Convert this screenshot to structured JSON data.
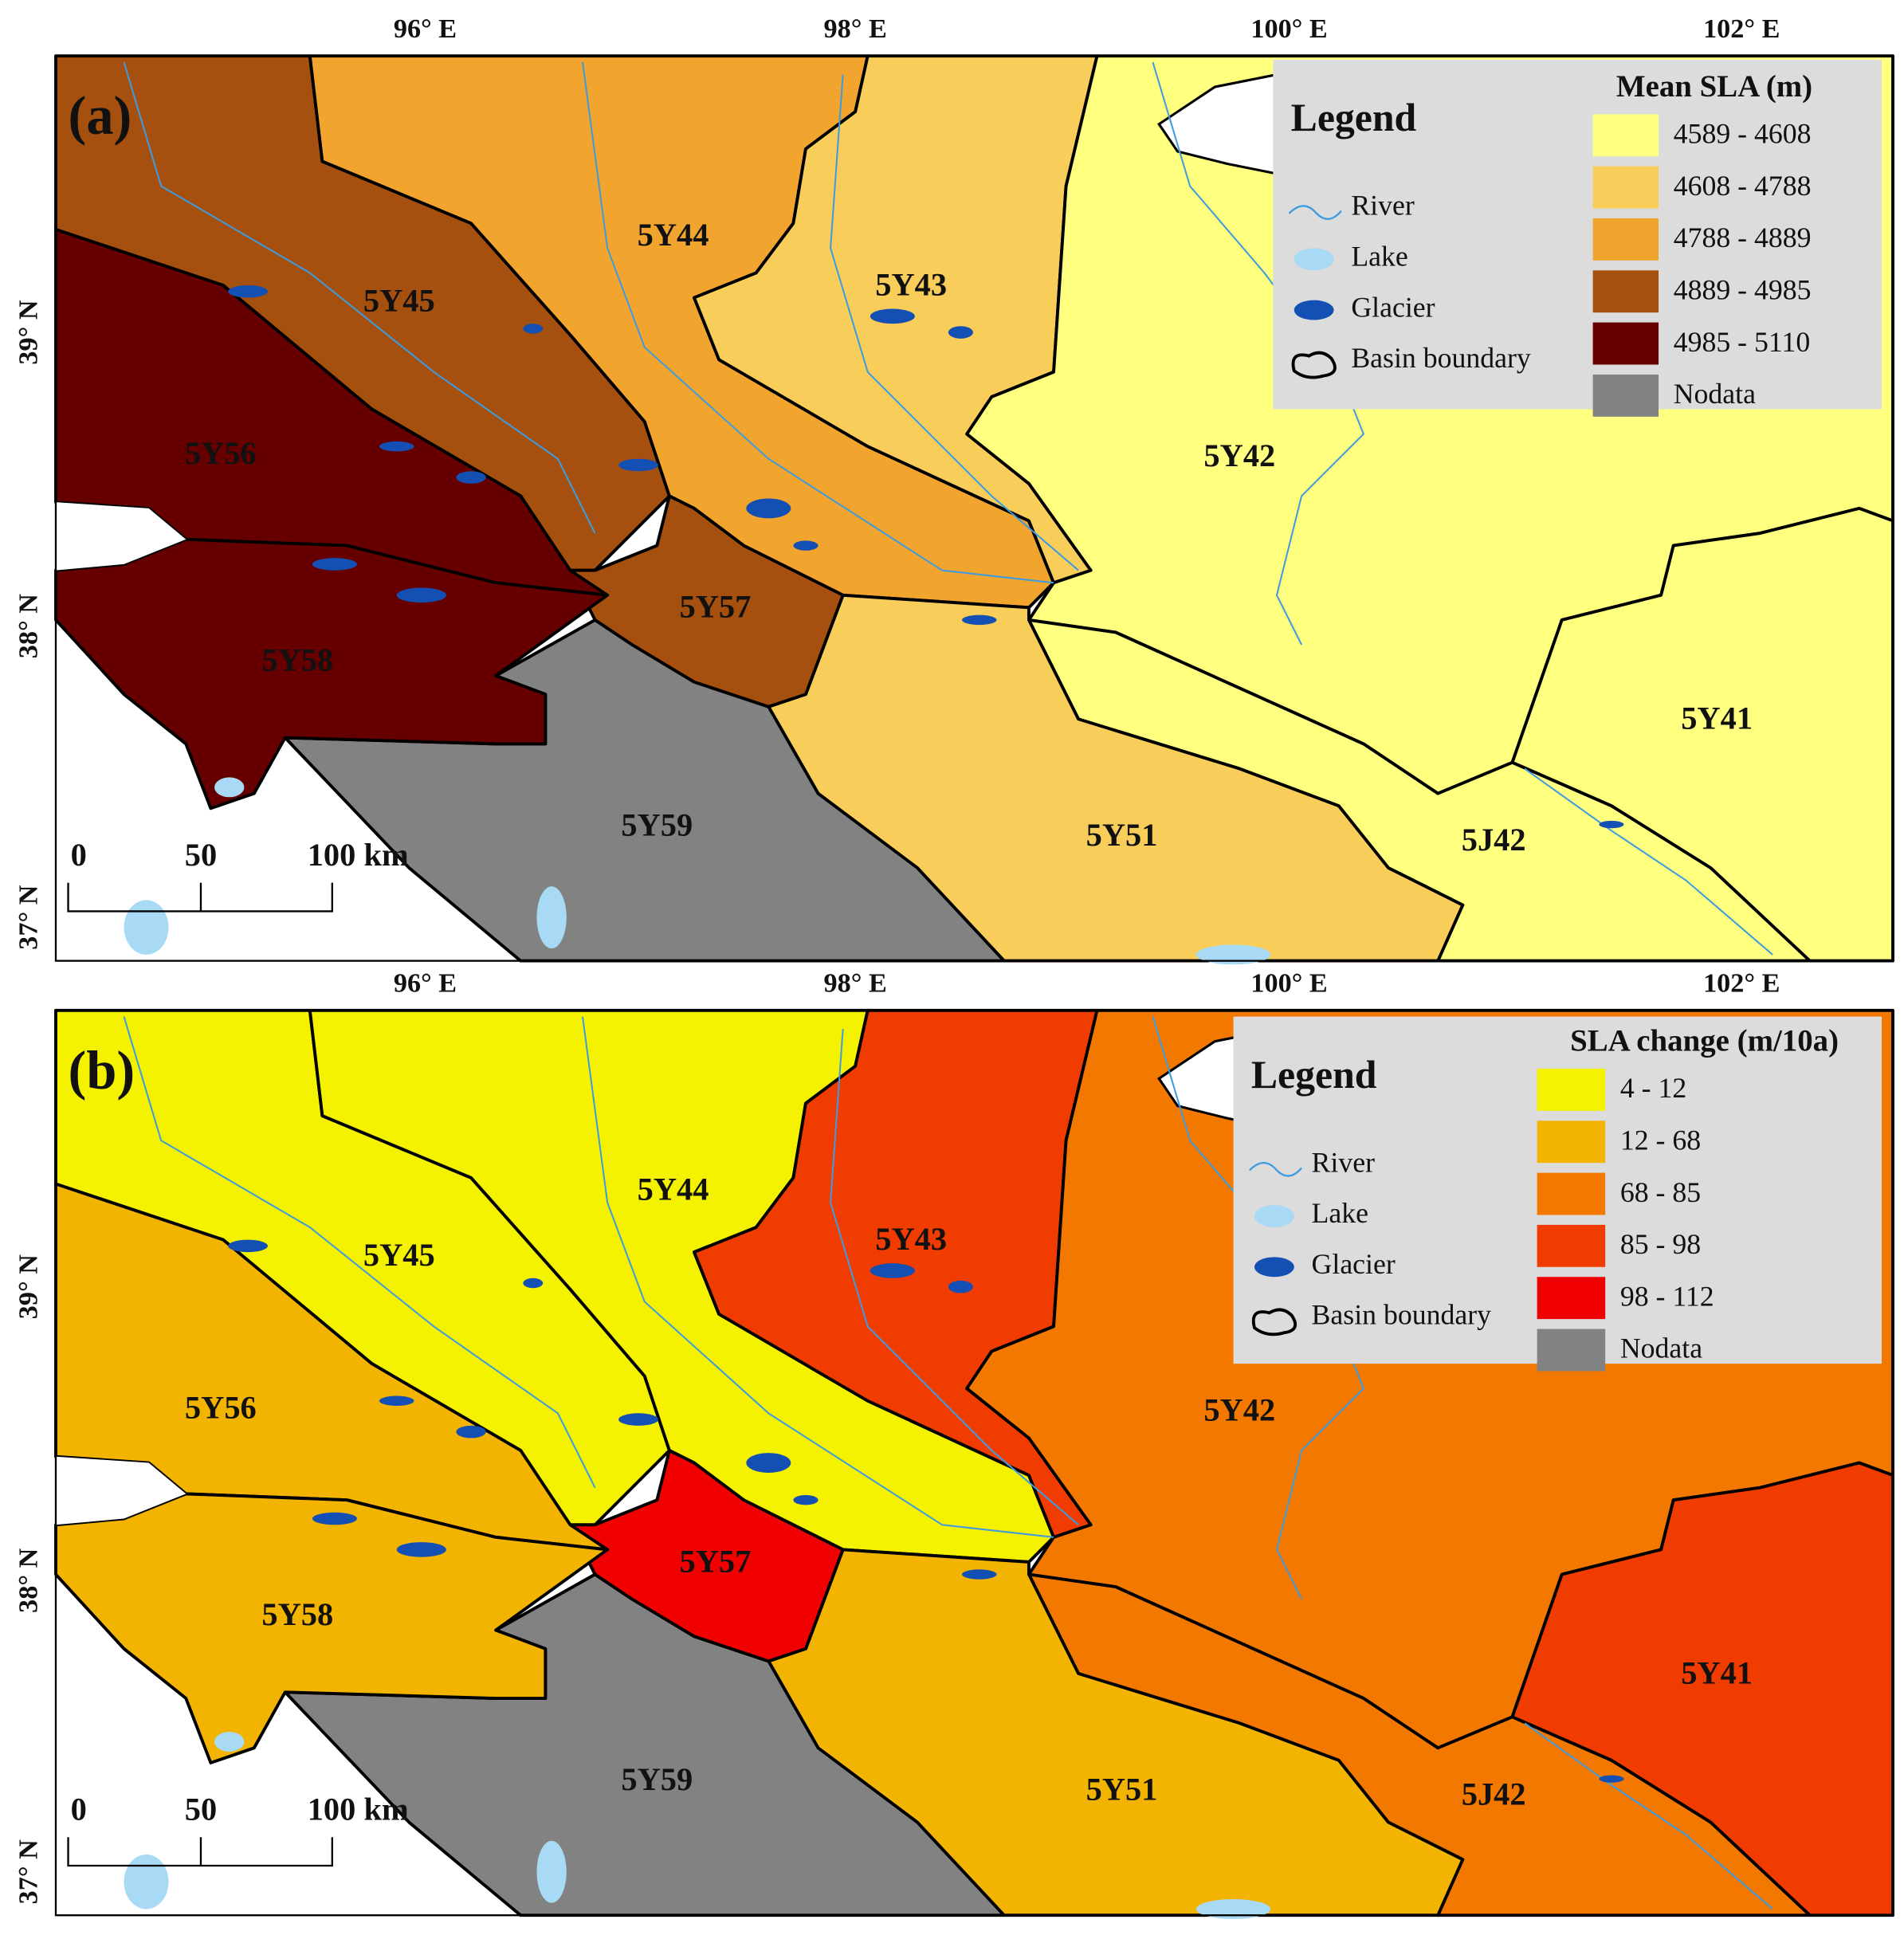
{
  "panels": [
    {
      "label": "(a)",
      "legend": {
        "title": "Legend",
        "items": [
          "River",
          "Lake",
          "Glacier",
          "Basin boundary"
        ]
      },
      "classes": {
        "title": "Mean SLA (m)",
        "items": [
          {
            "label": "4589 - 4608",
            "color": "#ffff80"
          },
          {
            "label": "4608 - 4788",
            "color": "#f9cd5a"
          },
          {
            "label": "4788 - 4889",
            "color": "#f2a52e"
          },
          {
            "label": "4889 - 4985",
            "color": "#a5500f"
          },
          {
            "label": "4985 - 5110",
            "color": "#660000"
          },
          {
            "label": "Nodata",
            "color": "#828282"
          }
        ]
      },
      "basins": [
        {
          "name": "5Y45",
          "color": "#a5500f"
        },
        {
          "name": "5Y44",
          "color": "#f2a52e"
        },
        {
          "name": "5Y43",
          "color": "#f9cd5a"
        },
        {
          "name": "5Y42",
          "color": "#ffff80"
        },
        {
          "name": "5Y41",
          "color": "#ffff80"
        },
        {
          "name": "5J42",
          "color": "#ffff80"
        },
        {
          "name": "5Y51",
          "color": "#f9cd5a"
        },
        {
          "name": "5Y59",
          "color": "#828282"
        },
        {
          "name": "5Y57",
          "color": "#a5500f"
        },
        {
          "name": "5Y56",
          "color": "#660000"
        },
        {
          "name": "5Y58",
          "color": "#660000"
        }
      ],
      "x_labels": [
        "96° E",
        "98° E",
        "100° E",
        "102° E"
      ],
      "y_labels": [
        "39° N",
        "38° N",
        "37° N"
      ]
    },
    {
      "label": "(b)",
      "legend": {
        "title": "Legend",
        "items": [
          "River",
          "Lake",
          "Glacier",
          "Basin boundary"
        ]
      },
      "classes": {
        "title": "SLA change (m/10a)",
        "items": [
          {
            "label": "4 - 12",
            "color": "#f5f200"
          },
          {
            "label": "12 - 68",
            "color": "#f2b400"
          },
          {
            "label": "68 - 85",
            "color": "#f27800"
          },
          {
            "label": "85 - 98",
            "color": "#f03c00"
          },
          {
            "label": "98 - 112",
            "color": "#f00000"
          },
          {
            "label": "Nodata",
            "color": "#828282"
          }
        ]
      },
      "basins": [
        {
          "name": "5Y45",
          "color": "#f5f200"
        },
        {
          "name": "5Y44",
          "color": "#f5f200"
        },
        {
          "name": "5Y43",
          "color": "#f03c00"
        },
        {
          "name": "5Y42",
          "color": "#f27800"
        },
        {
          "name": "5Y41",
          "color": "#f03c00"
        },
        {
          "name": "5J42",
          "color": "#f27800"
        },
        {
          "name": "5Y51",
          "color": "#f2b400"
        },
        {
          "name": "5Y59",
          "color": "#828282"
        },
        {
          "name": "5Y57",
          "color": "#f00000"
        },
        {
          "name": "5Y56",
          "color": "#f2b400"
        },
        {
          "name": "5Y58",
          "color": "#f2b400"
        }
      ],
      "x_labels": [
        "96° E",
        "98° E",
        "100° E",
        "102° E"
      ],
      "y_labels": [
        "39° N",
        "38° N",
        "37° N"
      ]
    }
  ],
  "scale_bar": [
    "0",
    "50",
    "100 km"
  ]
}
